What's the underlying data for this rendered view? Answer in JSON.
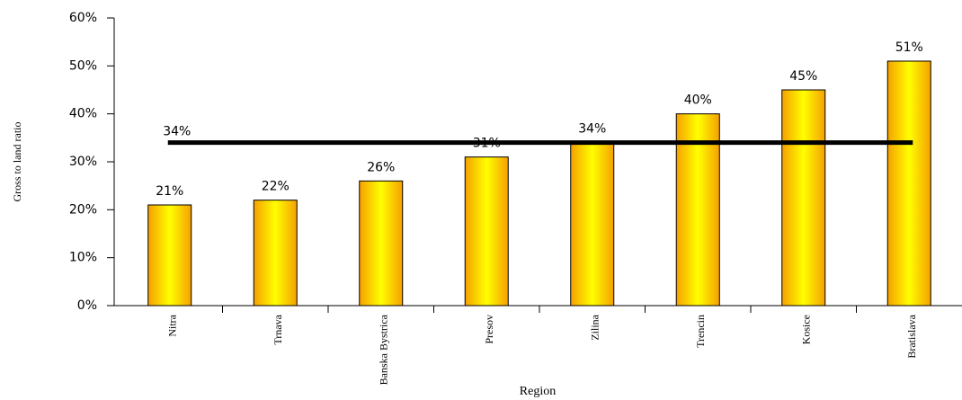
{
  "chart_data": {
    "type": "bar",
    "categories": [
      "Nitra",
      "Trnava",
      "Banska Bystrica",
      "Presov",
      "Zilina",
      "Trencin",
      "Kosice",
      "Bratislava"
    ],
    "values": [
      21,
      22,
      26,
      31,
      34,
      40,
      45,
      51
    ],
    "value_labels": [
      "21%",
      "22%",
      "26%",
      "31%",
      "34%",
      "40%",
      "45%",
      "51%"
    ],
    "color": "#ffff00",
    "edge_color": "#f5a000",
    "ylim": [
      0,
      60
    ],
    "yticks": [
      {
        "value": 0,
        "label": "0%"
      },
      {
        "value": 10,
        "label": "10%"
      },
      {
        "value": 20,
        "label": "20%"
      },
      {
        "value": 30,
        "label": "30%"
      },
      {
        "value": 40,
        "label": "40%"
      },
      {
        "value": 50,
        "label": "50%"
      },
      {
        "value": 60,
        "label": "60%"
      }
    ],
    "reference_line": {
      "value": 34,
      "label": "34%",
      "color": "#000000"
    },
    "ylabel": "Gross to land ratio",
    "xlabel": "Region",
    "grid": false
  }
}
